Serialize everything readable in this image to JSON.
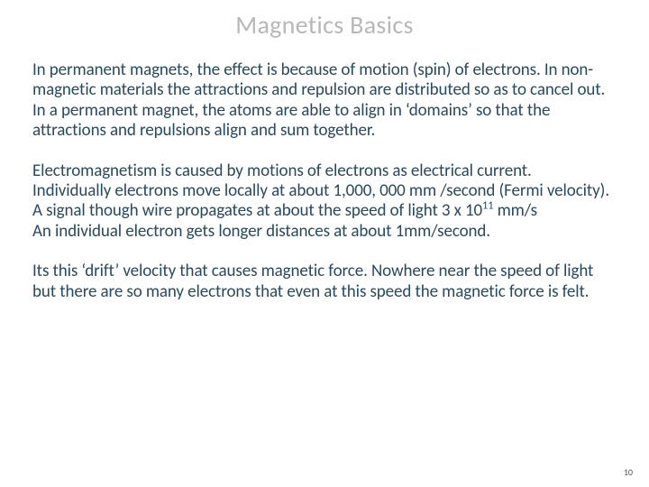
{
  "title": "Magnetics Basics",
  "title_color": "#b8b8b8",
  "title_fontsize": 28,
  "body_color": "#2a4a5c",
  "body_fontsize": 19,
  "background_color": "#ffffff",
  "paragraphs": {
    "p1": "In permanent magnets, the effect is because of motion (spin) of electrons. In non-magnetic materials the attractions and repulsion are distributed so as to cancel out.  In a permanent magnet, the atoms are able to align in ‘domains’ so that the attractions and repulsions align and sum together.",
    "p2_l1": "Electromagnetism is caused by motions of electrons as electrical current.",
    "p2_l2": "Individually electrons move locally at about 1,000, 000 mm /second (Fermi velocity).",
    "p2_l3a": "A signal though wire propagates at about the speed of light 3 x 10",
    "p2_l3_exp": "11",
    "p2_l3b": " mm/s",
    "p2_l4": "An individual electron gets longer distances at about 1mm/second.",
    "p3": "Its this ‘drift’ velocity that causes magnetic force. Nowhere near the speed of light but there are so many electrons that even at this speed the magnetic force is felt."
  },
  "page_number": "10"
}
